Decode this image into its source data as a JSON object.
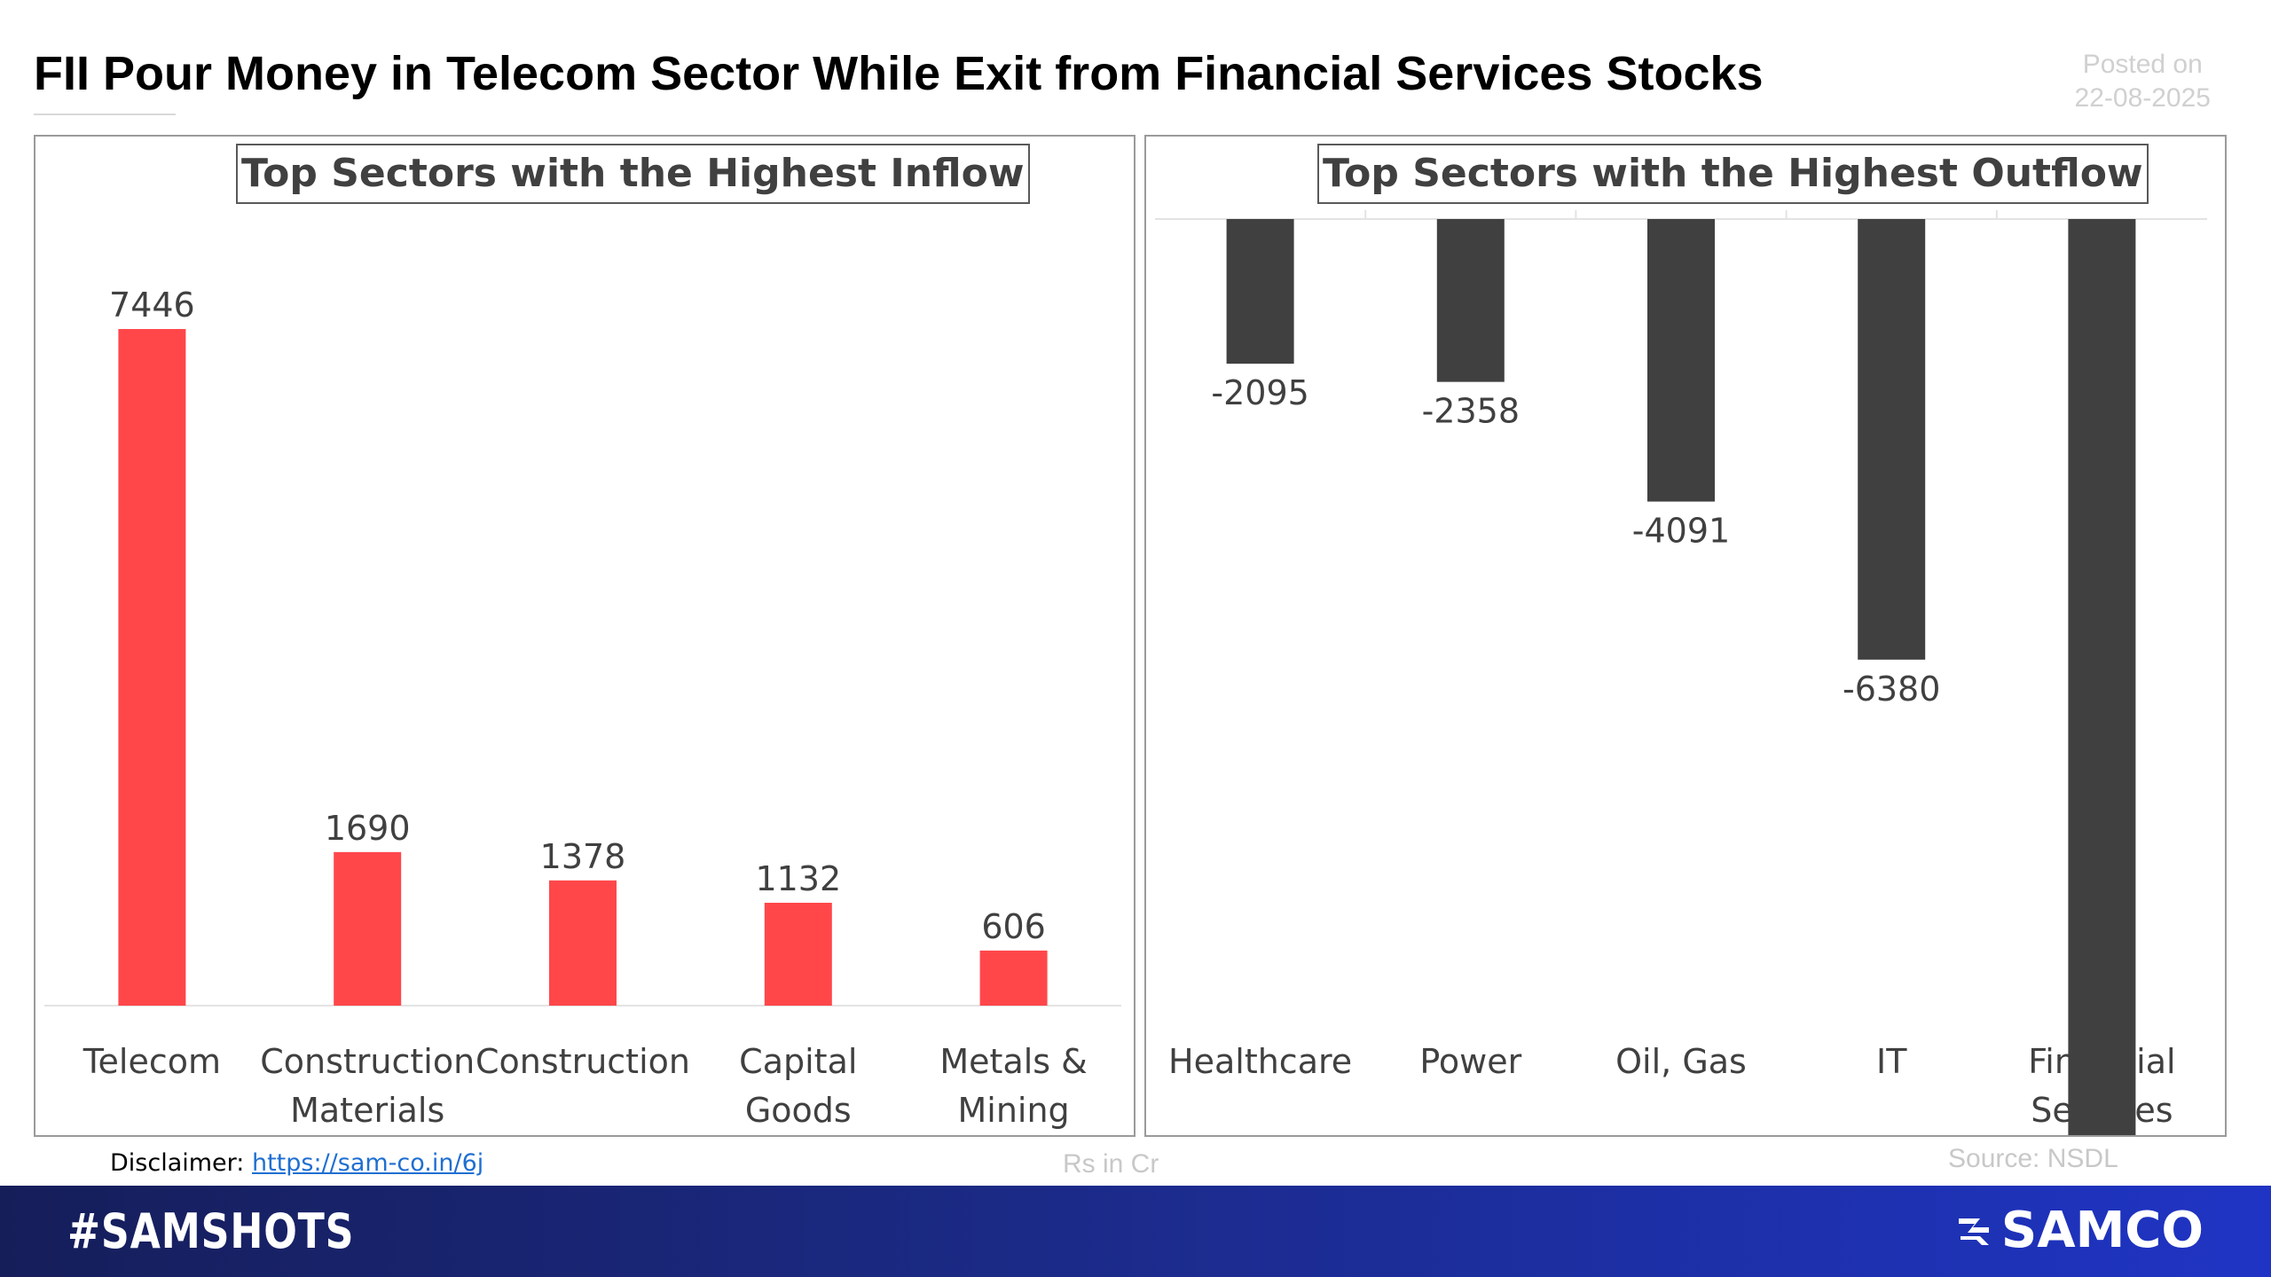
{
  "header": {
    "title": "FII Pour Money in Telecom Sector While Exit from Financial Services Stocks",
    "posted_label": "Posted on",
    "posted_date": "22-08-2025"
  },
  "chart_data": [
    {
      "type": "bar",
      "title": "Top Sectors with the Highest Inflow",
      "categories": [
        "Telecom",
        "Construction Materials",
        "Construction",
        "Capital Goods",
        "Metals & Mining"
      ],
      "category_lines": [
        [
          "Telecom"
        ],
        [
          "Construction",
          "Materials"
        ],
        [
          "Construction"
        ],
        [
          "Capital",
          "Goods"
        ],
        [
          "Metals &",
          "Mining"
        ]
      ],
      "values": [
        7446,
        1690,
        1378,
        1132,
        606
      ],
      "color": "#ff474a",
      "ylim": [
        0,
        8100
      ]
    },
    {
      "type": "bar",
      "title": "Top Sectors with the Highest Outflow",
      "categories": [
        "Healthcare",
        "Power",
        "Oil, Gas",
        "IT",
        "Financial Services"
      ],
      "category_lines": [
        [
          "Healthcare"
        ],
        [
          "Power"
        ],
        [
          "Oil, Gas"
        ],
        [
          "IT"
        ],
        [
          "Financial",
          "Services"
        ]
      ],
      "values": [
        -2095,
        -2358,
        -4091,
        -6380,
        -13471
      ],
      "color": "#404040",
      "ylim": [
        -16000,
        0
      ]
    }
  ],
  "footer": {
    "disclaimer_label": "Disclaimer: ",
    "disclaimer_link": "https://sam-co.in/6j",
    "units": "Rs in Cr",
    "source": "Source: NSDL"
  },
  "banner": {
    "hashtag": "#SAMSHOTS",
    "brand": "SAMCO"
  },
  "colors": {
    "inflow_bar": "#ff474a",
    "outflow_bar": "#404040",
    "banner_start": "#161e5a",
    "banner_end": "#1f34c4"
  }
}
